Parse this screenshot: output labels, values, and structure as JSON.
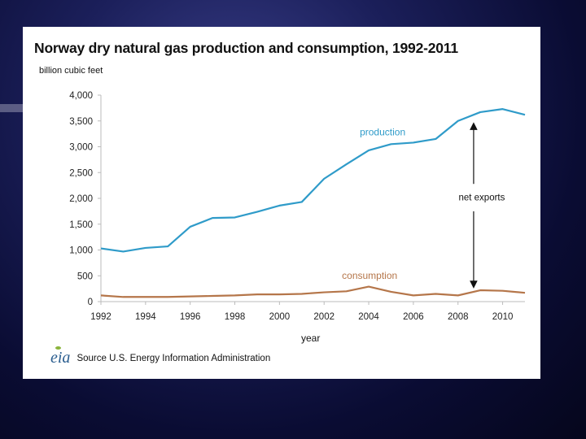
{
  "chart_data": {
    "type": "line",
    "title": "Norway dry natural gas production and consumption, 1992-2011",
    "ylabel": "billion cubic feet",
    "xlabel": "year",
    "x": [
      1992,
      1993,
      1994,
      1995,
      1996,
      1997,
      1998,
      1999,
      2000,
      2001,
      2002,
      2003,
      2004,
      2005,
      2006,
      2007,
      2008,
      2009,
      2010,
      2011
    ],
    "x_ticks": [
      "1992",
      "1994",
      "1996",
      "1998",
      "2000",
      "2002",
      "2004",
      "2006",
      "2008",
      "2010"
    ],
    "y_ticks": [
      "0",
      "500",
      "1,000",
      "1,500",
      "2,000",
      "2,500",
      "3,000",
      "3,500",
      "4,000"
    ],
    "ylim": [
      0,
      4000
    ],
    "xlim": [
      1992,
      2011
    ],
    "series": [
      {
        "name": "production",
        "color": "#2f9bc9",
        "values": [
          1030,
          970,
          1040,
          1070,
          1450,
          1620,
          1630,
          1740,
          1860,
          1930,
          2380,
          2660,
          2930,
          3050,
          3080,
          3150,
          3500,
          3670,
          3730,
          3620
        ]
      },
      {
        "name": "consumption",
        "color": "#b5764a",
        "values": [
          120,
          90,
          90,
          90,
          100,
          110,
          120,
          140,
          140,
          150,
          180,
          200,
          290,
          190,
          120,
          150,
          120,
          220,
          210,
          170
        ]
      }
    ],
    "annotations": {
      "production_label": "production",
      "consumption_label": "consumption",
      "net_exports_label": "net exports",
      "net_exports_year": 2008.7
    },
    "source": "Source U.S. Energy Information Administration",
    "logo_text": "eia"
  }
}
